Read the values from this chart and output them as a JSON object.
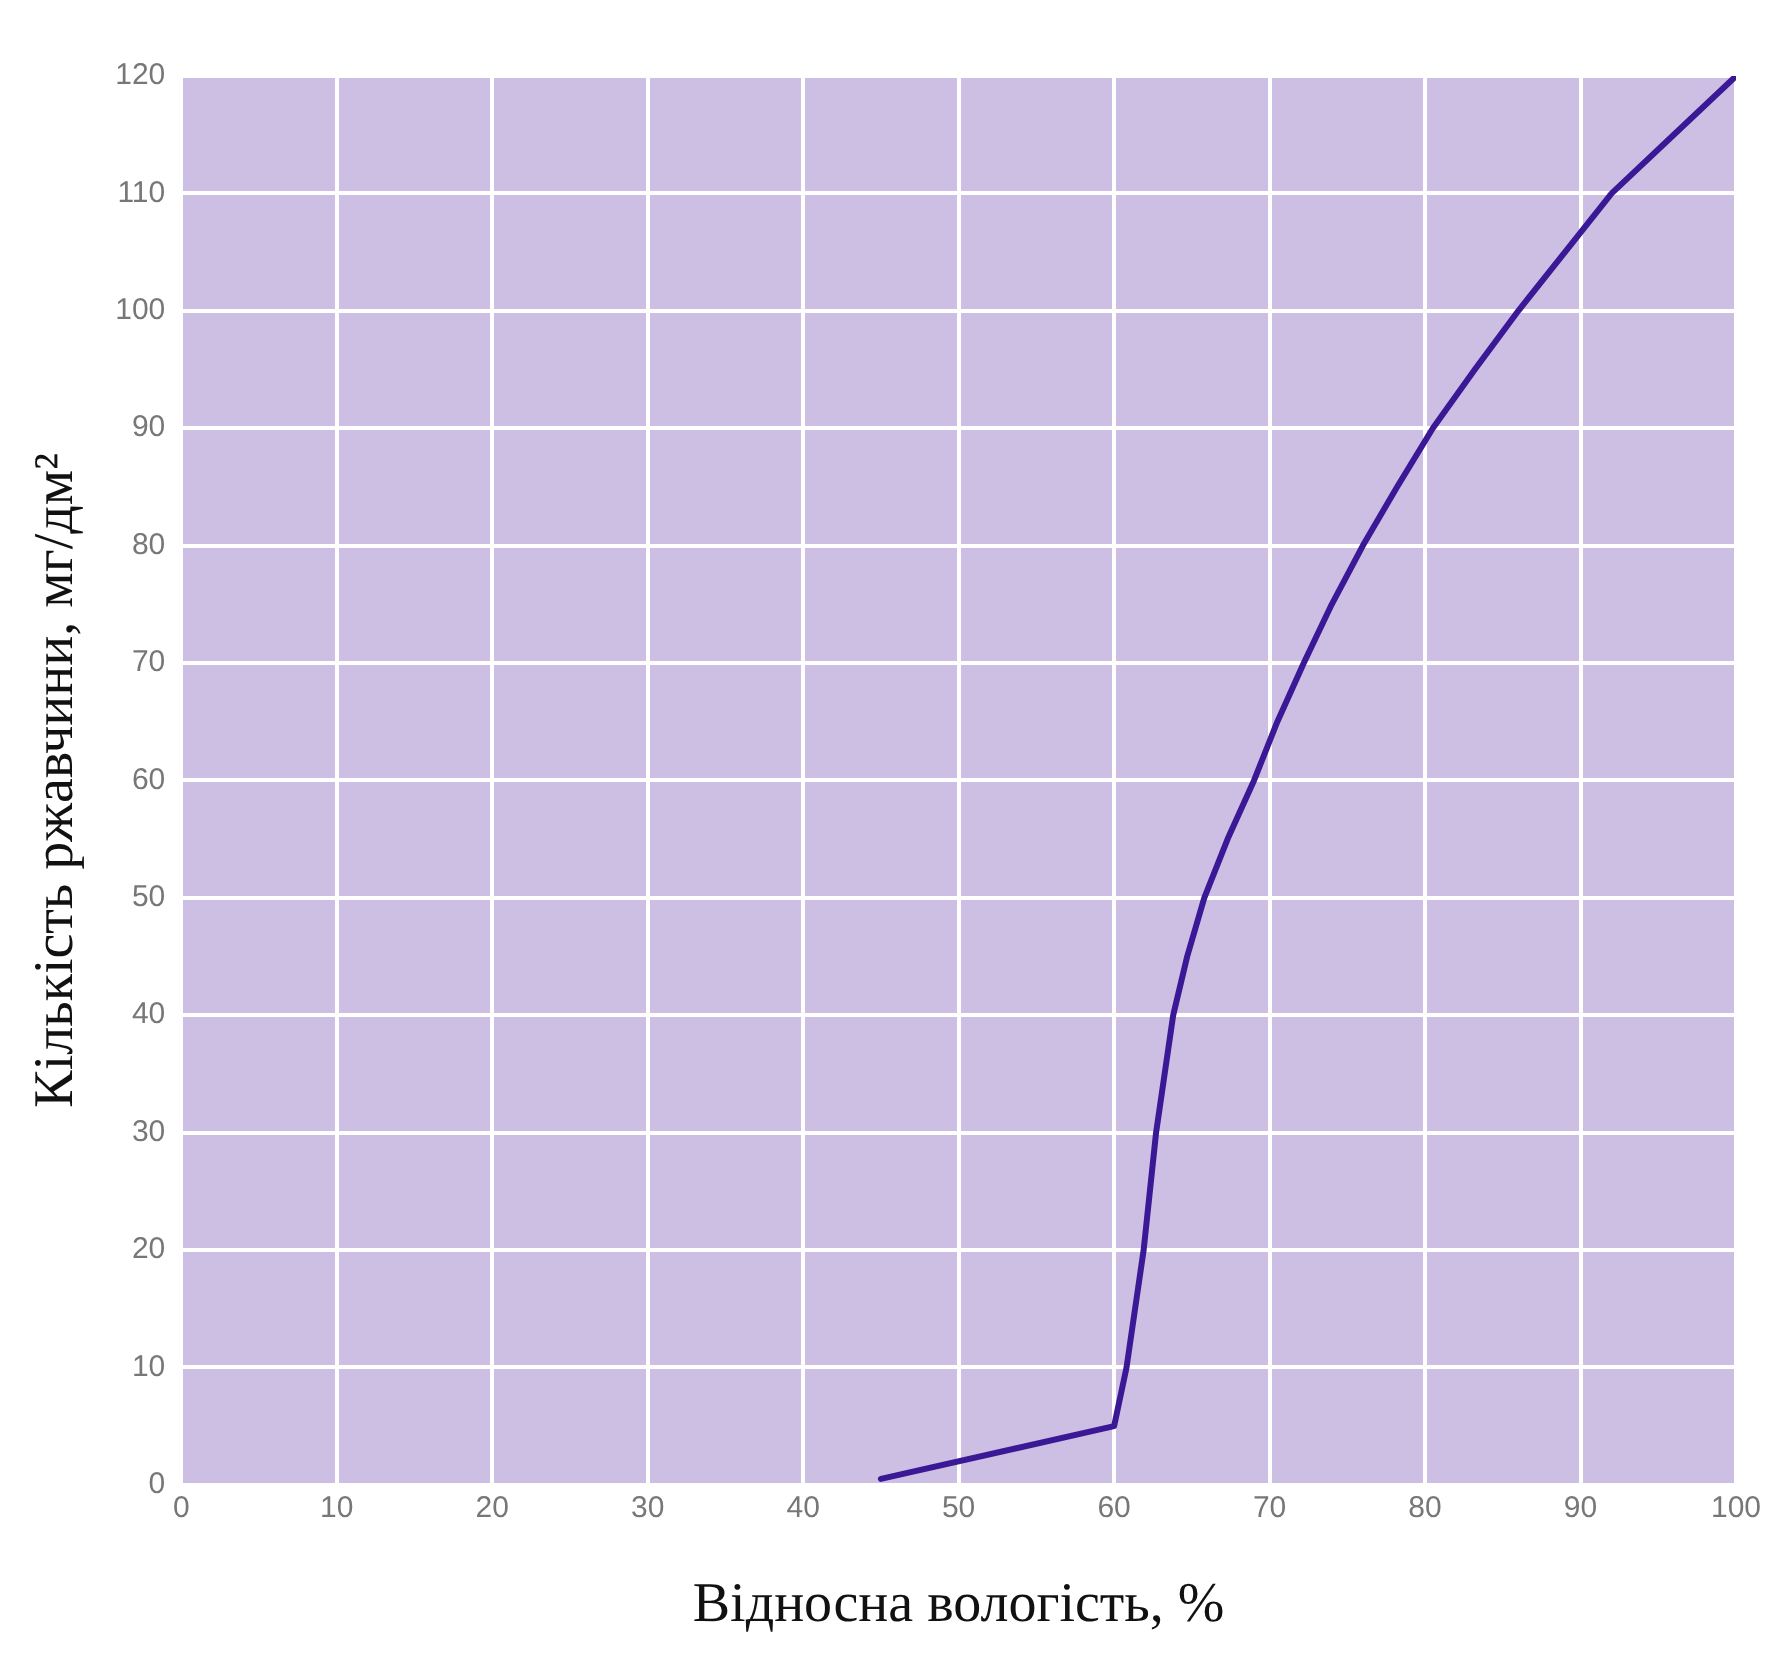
{
  "chart_data": {
    "type": "line",
    "xlabel": "Відносна вологість, %",
    "ylabel": "Кількість ржавчини, мг/дм²",
    "series": [
      {
        "color": "#3b1896",
        "x": [
          45,
          60,
          60.8,
          61.9,
          62.7,
          63.8,
          64.7,
          65.8,
          67.3,
          69,
          70.5,
          72.2,
          74,
          76,
          78.2,
          80.5,
          83.2,
          86,
          89,
          92,
          96,
          100
        ],
        "values": [
          0.5,
          5,
          10,
          20,
          30,
          40,
          45,
          50,
          55,
          60,
          65,
          70,
          75,
          80,
          85,
          90,
          95,
          100,
          105,
          110,
          115,
          120
        ]
      }
    ],
    "xlim": [
      0,
      100
    ],
    "xticks": [
      0,
      10,
      20,
      30,
      40,
      50,
      60,
      70,
      80,
      90,
      100
    ],
    "ylim": [
      0,
      120
    ],
    "yticks": [
      0,
      10,
      20,
      30,
      40,
      50,
      60,
      70,
      80,
      90,
      100,
      110,
      120
    ],
    "grid": true,
    "legend": false,
    "marker": "none",
    "line_style": "solid"
  }
}
